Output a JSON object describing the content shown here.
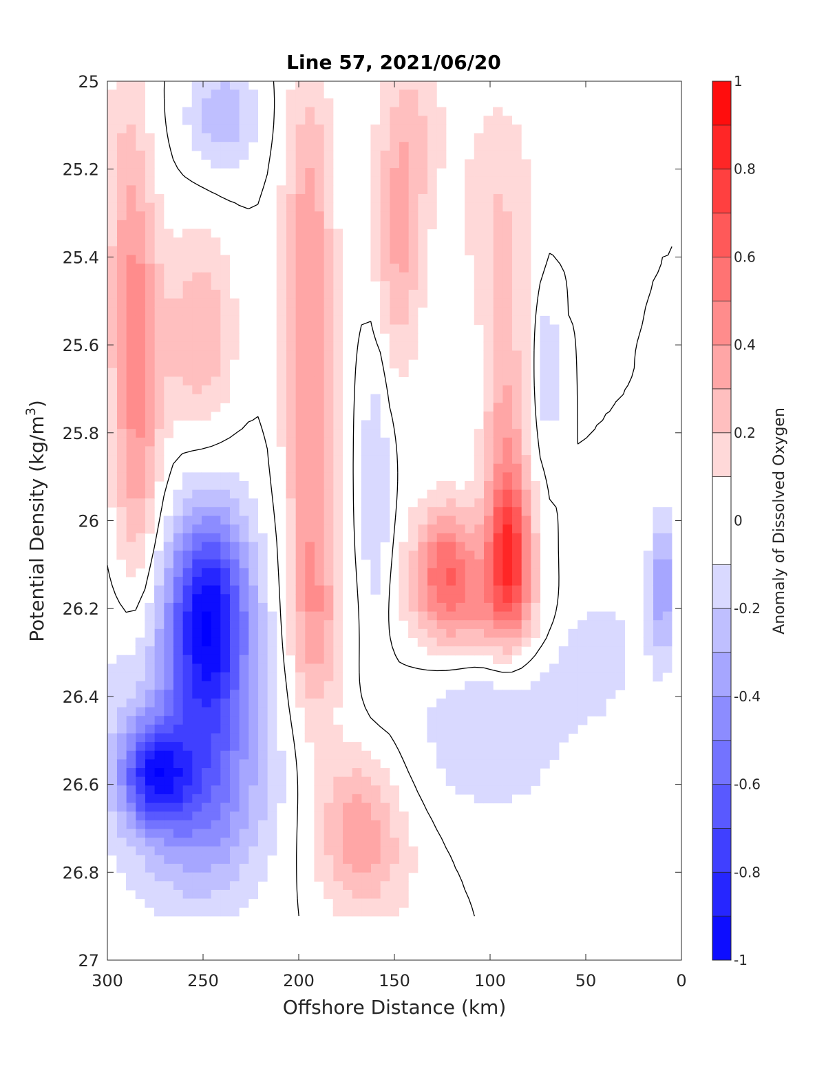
{
  "chart_data": {
    "type": "heatmap",
    "title": "Line 57, 2021/06/20",
    "xlabel": "Offshore Distance (km)",
    "ylabel_main": "Potential Density (kg/m",
    "ylabel_sup": "3",
    "ylabel_close": ")",
    "xlim": [
      300,
      0
    ],
    "x_reversed": true,
    "ylim": [
      25,
      27
    ],
    "y_reversed": true,
    "x_ticks": [
      300,
      250,
      200,
      150,
      100,
      50,
      0
    ],
    "x_tick_labels": [
      "300",
      "250",
      "200",
      "150",
      "100",
      "50",
      "0"
    ],
    "y_ticks": [
      25,
      25.2,
      25.4,
      25.6,
      25.8,
      26,
      26.2,
      26.4,
      26.6,
      26.8,
      27
    ],
    "y_tick_labels": [
      "25",
      "25.2",
      "25.4",
      "25.6",
      "25.8",
      "26",
      "26.2",
      "26.4",
      "26.6",
      "26.8",
      "27"
    ],
    "colorbar": {
      "label": "Anomaly of Dissolved Oxygen",
      "range": [
        -1,
        1
      ],
      "ticks": [
        1,
        0.8,
        0.6,
        0.4,
        0.2,
        0,
        -0.2,
        -0.4,
        -0.6,
        -0.8,
        -1
      ],
      "tick_labels": [
        "1",
        "0.8",
        "0.6",
        "0.4",
        "0.2",
        "0",
        "-0.2",
        "-0.4",
        "-0.6",
        "-0.8",
        "-1"
      ],
      "levels": [
        -1,
        -0.9,
        -0.8,
        -0.7,
        -0.6,
        -0.5,
        -0.4,
        -0.3,
        -0.2,
        -0.1,
        0.1,
        0.2,
        0.3,
        0.4,
        0.5,
        0.6,
        0.7,
        0.8,
        0.9,
        1
      ]
    },
    "colors": {
      "negative_max": "#0000ff",
      "positive_max": "#ff0000",
      "neutral": "#ffffff",
      "contour_zero": "#000000"
    },
    "data_extent": {
      "x_min": 5,
      "x_max": 300,
      "y_min": 25,
      "y_max": 26.9
    },
    "features": [
      {
        "x": 247,
        "y": 26.22,
        "value": -0.85,
        "sx": 14,
        "sy": 0.17
      },
      {
        "x": 276,
        "y": 26.58,
        "value": -0.65,
        "sx": 12,
        "sy": 0.08
      },
      {
        "x": 250,
        "y": 26.62,
        "value": -0.35,
        "sx": 20,
        "sy": 0.15
      },
      {
        "x": 258,
        "y": 26.45,
        "value": -0.25,
        "sx": 35,
        "sy": 0.3
      },
      {
        "x": 240,
        "y": 25.08,
        "value": -0.28,
        "sx": 13,
        "sy": 0.09
      },
      {
        "x": 160,
        "y": 25.92,
        "value": -0.22,
        "sx": 5,
        "sy": 0.25
      },
      {
        "x": 70,
        "y": 25.65,
        "value": -0.24,
        "sx": 4,
        "sy": 0.13
      },
      {
        "x": 100,
        "y": 26.47,
        "value": -0.2,
        "sx": 28,
        "sy": 0.15
      },
      {
        "x": 45,
        "y": 26.3,
        "value": -0.15,
        "sx": 18,
        "sy": 0.12
      },
      {
        "x": 10,
        "y": 26.15,
        "value": -0.45,
        "sx": 4,
        "sy": 0.12
      },
      {
        "x": 285,
        "y": 25.6,
        "value": 0.42,
        "sx": 9,
        "sy": 0.25
      },
      {
        "x": 290,
        "y": 25.2,
        "value": 0.18,
        "sx": 8,
        "sy": 0.25
      },
      {
        "x": 285,
        "y": 26.0,
        "value": 0.22,
        "sx": 9,
        "sy": 0.2
      },
      {
        "x": 252,
        "y": 25.58,
        "value": 0.3,
        "sx": 13,
        "sy": 0.17
      },
      {
        "x": 194,
        "y": 25.9,
        "value": 0.38,
        "sx": 9,
        "sy": 0.35
      },
      {
        "x": 195,
        "y": 25.3,
        "value": 0.28,
        "sx": 9,
        "sy": 0.27
      },
      {
        "x": 190,
        "y": 26.25,
        "value": 0.22,
        "sx": 10,
        "sy": 0.15
      },
      {
        "x": 148,
        "y": 25.38,
        "value": 0.32,
        "sx": 9,
        "sy": 0.2
      },
      {
        "x": 140,
        "y": 25.1,
        "value": 0.18,
        "sx": 12,
        "sy": 0.15
      },
      {
        "x": 90,
        "y": 26.08,
        "value": 0.7,
        "sx": 8,
        "sy": 0.12
      },
      {
        "x": 123,
        "y": 26.1,
        "value": 0.55,
        "sx": 12,
        "sy": 0.1
      },
      {
        "x": 92,
        "y": 25.82,
        "value": 0.35,
        "sx": 8,
        "sy": 0.2
      },
      {
        "x": 105,
        "y": 26.22,
        "value": 0.28,
        "sx": 24,
        "sy": 0.08
      },
      {
        "x": 95,
        "y": 25.3,
        "value": 0.2,
        "sx": 14,
        "sy": 0.2
      },
      {
        "x": 170,
        "y": 26.68,
        "value": 0.28,
        "sx": 14,
        "sy": 0.12
      },
      {
        "x": 160,
        "y": 26.78,
        "value": 0.15,
        "sx": 20,
        "sy": 0.12
      }
    ]
  }
}
